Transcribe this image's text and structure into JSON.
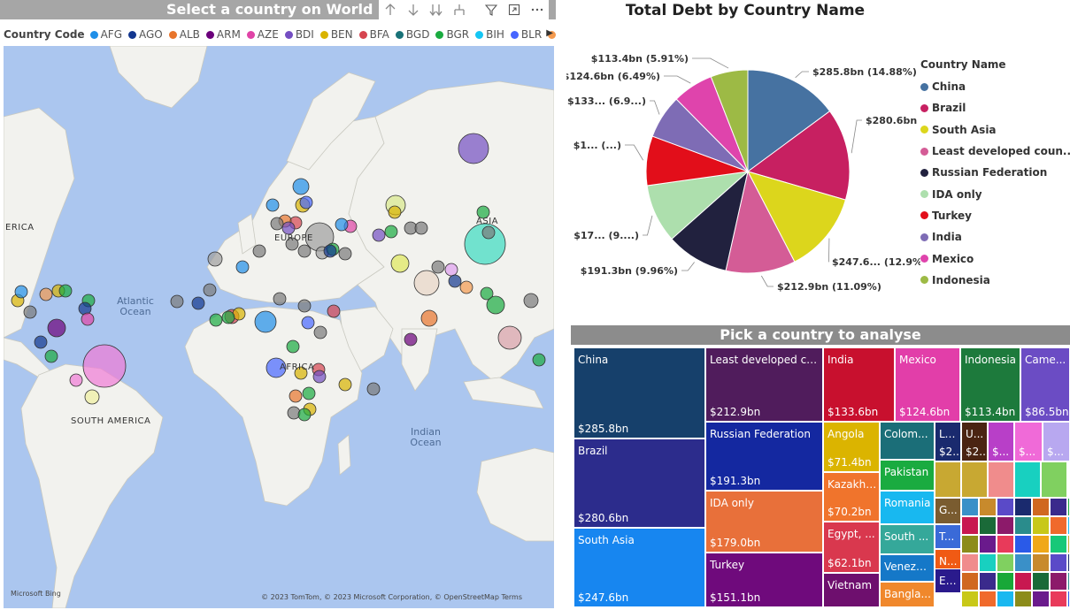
{
  "map": {
    "title": "Select a country on World Ma",
    "legend_title": "Country Code",
    "legend": [
      {
        "code": "AFG",
        "color": "#1f8fe8"
      },
      {
        "code": "AGO",
        "color": "#13378f"
      },
      {
        "code": "ALB",
        "color": "#e8752c"
      },
      {
        "code": "ARM",
        "color": "#6b007b"
      },
      {
        "code": "AZE",
        "color": "#e044a7"
      },
      {
        "code": "BDI",
        "color": "#744ec2"
      },
      {
        "code": "BEN",
        "color": "#d9b300"
      },
      {
        "code": "BFA",
        "color": "#d64550"
      },
      {
        "code": "BGD",
        "color": "#197278"
      },
      {
        "code": "BGR",
        "color": "#1aab40"
      },
      {
        "code": "BIH",
        "color": "#15c6f4"
      },
      {
        "code": "BLR",
        "color": "#4766ff"
      },
      {
        "code": "BLZ",
        "color": "#f49a4e"
      }
    ],
    "labels": {
      "europe": "EUROPE",
      "asia": "ASIA",
      "africa": "AFRICA",
      "south_america": "SOUTH AMERICA",
      "north_america": "ERICA",
      "atlantic": "Atlantic Ocean",
      "indian": "Indian Ocean"
    },
    "copyright": "© 2023 TomTom, © 2023 Microsoft Corporation, © OpenStreetMap  Terms",
    "bing": "Microsoft Bing",
    "header_icons": [
      "arrow-up-icon",
      "arrow-down-icon",
      "double-arrow-down-icon",
      "expand-hierarchy-icon",
      "filter-icon",
      "focus-mode-icon",
      "more-options-icon"
    ]
  },
  "pie": {
    "title": "Total Debt by Country Name",
    "legend_title": "Country Name",
    "slices": [
      {
        "name": "China",
        "legend": "China",
        "value": 285.8,
        "label": "$285.8bn (14.88%)",
        "color": "#4672a1"
      },
      {
        "name": "Brazil",
        "legend": "Brazil",
        "value": 280.6,
        "label": "$280.6bn (14.62%)",
        "color": "#c72061"
      },
      {
        "name": "South Asia",
        "legend": "South Asia",
        "value": 247.6,
        "label": "$247.6... (12.9%)",
        "color": "#dcd61c"
      },
      {
        "name": "Least developed countries",
        "legend": "Least developed coun...",
        "value": 212.9,
        "label": "$212.9bn (11.09%)",
        "color": "#d45c96"
      },
      {
        "name": "Russian Federation",
        "legend": "Russian Federation",
        "value": 191.3,
        "label": "$191.3bn (9.96%)",
        "color": "#21213e"
      },
      {
        "name": "IDA only",
        "legend": "IDA only",
        "value": 179.0,
        "label": "$17... (9....)",
        "color": "#addfad"
      },
      {
        "name": "Turkey",
        "legend": "Turkey",
        "value": 151.1,
        "label": "$1... (...)",
        "color": "#e20e1a"
      },
      {
        "name": "India",
        "legend": "India",
        "value": 133.6,
        "label": "$133... (6.9...)",
        "color": "#7e6cb5"
      },
      {
        "name": "Mexico",
        "legend": "Mexico",
        "value": 124.6,
        "label": "$124.6bn (6.49%)",
        "color": "#df44ac"
      },
      {
        "name": "Indonesia",
        "legend": "Indonesia",
        "value": 113.4,
        "label": "$113.4bn (5.91%)",
        "color": "#9dba45"
      }
    ]
  },
  "treemap": {
    "title": "Pick a country to analyse",
    "tiles": [
      {
        "name": "China",
        "value": "$285.8bn",
        "color": "#16406b"
      },
      {
        "name": "Brazil",
        "value": "$280.6bn",
        "color": "#2c2c8c"
      },
      {
        "name": "South Asia",
        "value": "$247.6bn",
        "color": "#1786f0"
      },
      {
        "name": "Least developed co...",
        "value": "$212.9bn",
        "color": "#501c5c"
      },
      {
        "name": "Russian Federation",
        "value": "$191.3bn",
        "color": "#1428a0"
      },
      {
        "name": "IDA only",
        "value": "$179.0bn",
        "color": "#e8703a"
      },
      {
        "name": "Turkey",
        "value": "$151.1bn",
        "color": "#6f0a7c"
      },
      {
        "name": "India",
        "value": "$133.6bn",
        "color": "#c8102e"
      },
      {
        "name": "Mexico",
        "value": "$124.6bn",
        "color": "#e23ea9"
      },
      {
        "name": "Indonesia",
        "value": "$113.4bn",
        "color": "#1d7a3c"
      },
      {
        "name": "Came...",
        "value": "$86.5bn",
        "color": "#6b4cc4"
      },
      {
        "name": "Angola",
        "value": "$71.4bn",
        "color": "#dbb400"
      },
      {
        "name": "Kazakhs...",
        "value": "$70.2bn",
        "color": "#f0742c"
      },
      {
        "name": "Egypt, ...",
        "value": "$62.1bn",
        "color": "#d9384e"
      },
      {
        "name": "Vietnam",
        "value": "",
        "color": "#6e0f6e"
      },
      {
        "name": "Colom...",
        "value": "",
        "color": "#1b6e78"
      },
      {
        "name": "Pakistan",
        "value": "",
        "color": "#1aab40"
      },
      {
        "name": "Romania",
        "value": "",
        "color": "#18b8f0"
      },
      {
        "name": "South ...",
        "value": "",
        "color": "#35a89a"
      },
      {
        "name": "Venezu...",
        "value": "",
        "color": "#1578c8"
      },
      {
        "name": "Bangla...",
        "value": "",
        "color": "#f0882c"
      },
      {
        "name": "Le...",
        "value": "$2...",
        "color": "#1a2a6e"
      },
      {
        "name": "U...",
        "value": "$2...",
        "color": "#4a2412"
      },
      {
        "name": "",
        "value": "$...",
        "color": "#b83fc8"
      },
      {
        "name": "",
        "value": "$...",
        "color": "#f06ad8"
      },
      {
        "name": "",
        "value": "$...",
        "color": "#b8a8f0"
      },
      {
        "name": "G...",
        "value": "",
        "color": "#7a5c30"
      },
      {
        "name": "T...",
        "value": "",
        "color": "#3a6ad8"
      },
      {
        "name": "N...",
        "value": "",
        "color": "#f05a14"
      },
      {
        "name": "Et...",
        "value": "",
        "color": "#2a1a8c"
      }
    ]
  }
}
